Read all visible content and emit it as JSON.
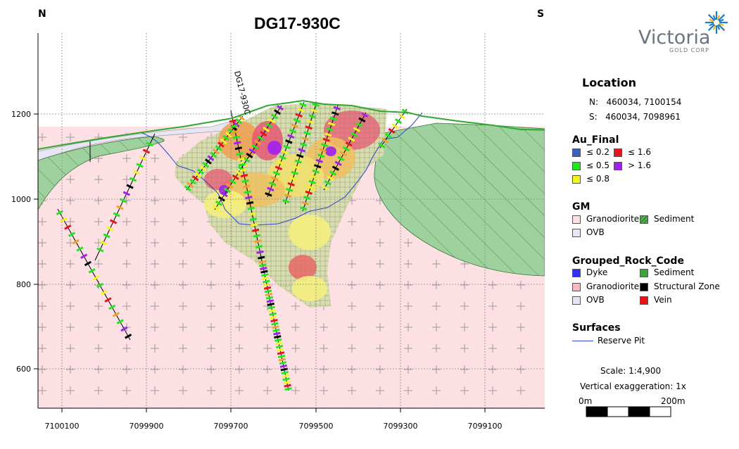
{
  "title": "DG17-930C",
  "direction_left": "N",
  "direction_right": "S",
  "logo": {
    "name": "Victoria",
    "sub": "GOLD CORP",
    "star_colors": [
      "#1a7fc4",
      "#f2b01e"
    ]
  },
  "drillhole_label": "DG17-930C",
  "axes": {
    "y_ticks": [
      "1200",
      "1000",
      "800",
      "600"
    ],
    "x_ticks": [
      "7100100",
      "7099900",
      "7099700",
      "7099500",
      "7099300",
      "7099100"
    ]
  },
  "location": {
    "heading": "Location",
    "rows": [
      {
        "key": "N:",
        "value": "460034, 7100154"
      },
      {
        "key": "S:",
        "value": "460034, 7098961"
      }
    ]
  },
  "au_final": {
    "heading": "Au_Final",
    "items": [
      {
        "label": "≤ 0.2",
        "color": "#3b5fbf"
      },
      {
        "label": "≤ 1.6",
        "color": "#e8141c"
      },
      {
        "label": "≤ 0.5",
        "color": "#1ee81e"
      },
      {
        "label": "> 1.6",
        "color": "#a020f0"
      },
      {
        "label": "≤ 0.8",
        "color": "#f5f51e"
      }
    ]
  },
  "gm": {
    "heading": "GM",
    "items": [
      {
        "label": "Granodiorite",
        "color": "#fde0e4"
      },
      {
        "label": "Sediment",
        "color": "#4fae4f"
      },
      {
        "label": "OVB",
        "color": "#e8e6f4"
      }
    ]
  },
  "grouped_rock_code": {
    "heading": "Grouped_Rock_Code",
    "items": [
      {
        "label": "Dyke",
        "color": "#3030ff"
      },
      {
        "label": "Sediment",
        "color": "#3aa63a"
      },
      {
        "label": "Granodiorite",
        "color": "#f7b8c0"
      },
      {
        "label": "Structural Zone",
        "color": "#000000"
      },
      {
        "label": "OVB",
        "color": "#e6e4f4"
      },
      {
        "label": "Vein",
        "color": "#ee1111"
      }
    ]
  },
  "surfaces": {
    "heading": "Surfaces",
    "items": [
      {
        "label": "Reserve Pit",
        "color": "#3044c8"
      }
    ]
  },
  "scale": {
    "text": "Scale: 1:4,900",
    "vertical": "Vertical exaggeration: 1x",
    "start": "0m",
    "end": "200m"
  }
}
